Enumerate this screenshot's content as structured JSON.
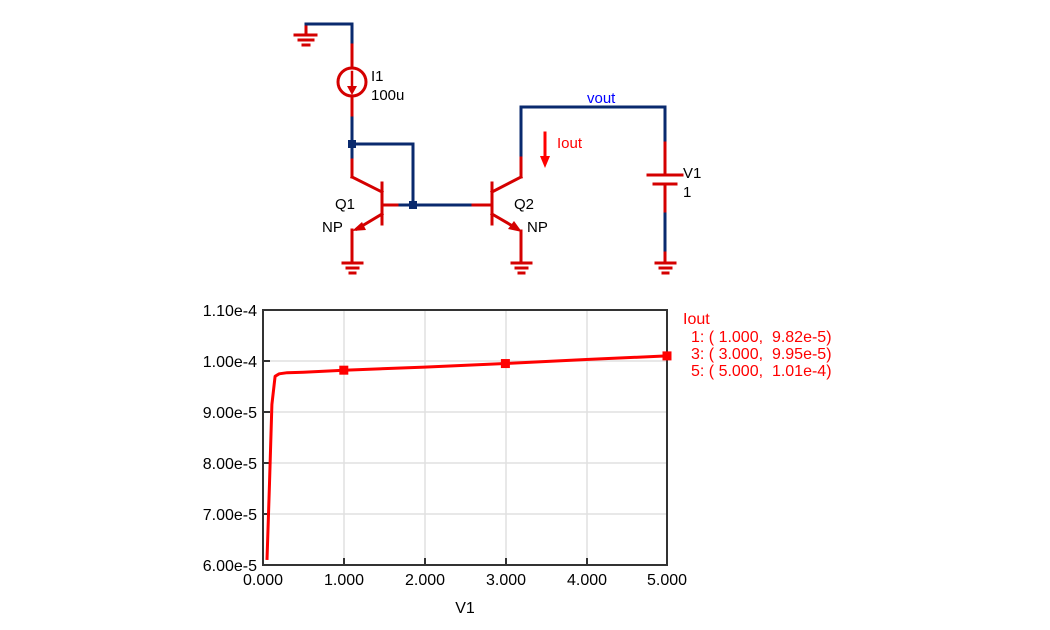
{
  "schematic": {
    "components": {
      "I1": {
        "name": "I1",
        "value": "100u"
      },
      "Q1": {
        "name": "Q1",
        "model": "NP"
      },
      "Q2": {
        "name": "Q2",
        "model": "NP"
      },
      "V1": {
        "name": "V1",
        "value": "1"
      }
    },
    "net_label": "vout",
    "current_probe": "Iout",
    "colors": {
      "wire": "#0a2a6e",
      "component": "#d40000",
      "net_label": "#0000ff",
      "probe": "#ff0000"
    }
  },
  "chart_data": {
    "type": "line",
    "title": "",
    "xlabel": "V1",
    "ylabel": "",
    "xlim": [
      0,
      5
    ],
    "ylim": [
      6e-05,
      0.00011
    ],
    "x_ticks": [
      "0.000",
      "1.000",
      "2.000",
      "3.000",
      "4.000",
      "5.000"
    ],
    "y_ticks": [
      "6.00e-5",
      "7.00e-5",
      "8.00e-5",
      "9.00e-5",
      "1.00e-4",
      "1.10e-4"
    ],
    "grid": true,
    "legend_position": "right",
    "series": [
      {
        "name": "Iout",
        "color": "#ff0000",
        "x": [
          0.05,
          0.08,
          0.11,
          0.15,
          0.2,
          0.3,
          0.5,
          1.0,
          2.0,
          3.0,
          4.0,
          5.0
        ],
        "values": [
          6.1e-05,
          7.6e-05,
          9.15e-05,
          9.7e-05,
          9.75e-05,
          9.77e-05,
          9.78e-05,
          9.82e-05,
          9.88e-05,
          9.95e-05,
          0.0001003,
          0.000101
        ],
        "markers": [
          {
            "index": "1",
            "x": "1.000",
            "y": "9.82e-5"
          },
          {
            "index": "3",
            "x": "3.000",
            "y": "9.95e-5"
          },
          {
            "index": "5",
            "x": "5.000",
            "y": "1.01e-4"
          }
        ]
      }
    ]
  },
  "legend": {
    "title": "Iout",
    "lines": [
      "1: ( 1.000,  9.82e-5)",
      "3: ( 3.000,  9.95e-5)",
      "5: ( 5.000,  1.01e-4)"
    ]
  }
}
